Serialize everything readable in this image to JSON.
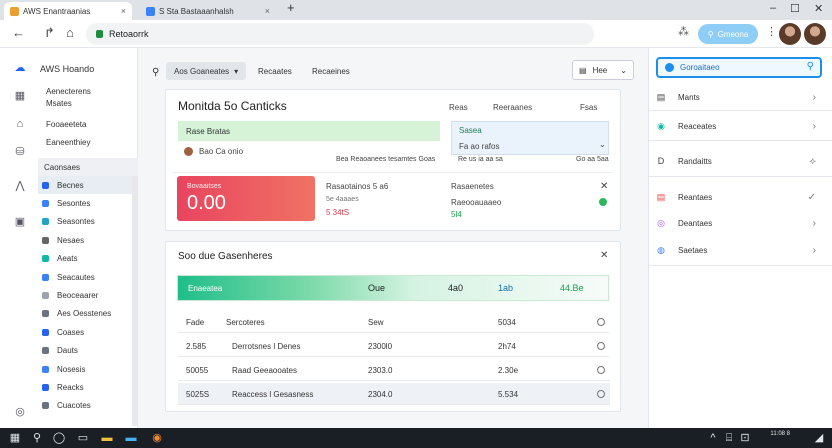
{
  "browser": {
    "tabs": [
      {
        "label": "AWS Enantraanias",
        "icon_color": "#e8a030",
        "close": "×"
      },
      {
        "label": "S Sta Bastaaanhalsh",
        "icon_color": "#3b82f6",
        "close": "×"
      }
    ],
    "new_tab": "+",
    "window_controls": {
      "minimize": "–",
      "maximize": "☐",
      "close": "✕"
    },
    "nav": {
      "back": "←",
      "forward": "↱",
      "home": "⌂"
    },
    "url": "Retoaorrk",
    "extensions": [
      "⁂",
      "⋮"
    ],
    "action_button": "Gmeona",
    "action_icon": "search-icon"
  },
  "sidebar": {
    "title": "AWS Hoando",
    "rail_icons": [
      "cloud-icon",
      "grid-icon",
      "home-icon",
      "database-icon",
      "chart-icon",
      "bell-icon",
      "settings-icon"
    ],
    "sections": [
      {
        "label": "Aenecterens\nMsates"
      },
      {
        "label": "Fooaeeteta"
      },
      {
        "label": "Eaneenthiey"
      },
      {
        "label": "Caonsaes"
      }
    ],
    "subitems": [
      {
        "label": "Becnes",
        "color": "#2563eb",
        "selected": true
      },
      {
        "label": "Sesontes",
        "color": "#3b82f6"
      },
      {
        "label": "Seasontes",
        "color": "#22a3c4"
      },
      {
        "label": "Nesaes",
        "color": "#666"
      },
      {
        "label": "Aeats",
        "color": "#14b8a6"
      },
      {
        "label": "Seacautes",
        "color": "#3b82f6"
      },
      {
        "label": "Beoceaarer",
        "color": "#9ca3af"
      },
      {
        "label": "Aes Oesstenes",
        "color": "#6b7280"
      },
      {
        "label": "Coases",
        "color": "#2563eb"
      },
      {
        "label": "Dauts",
        "color": "#6b7280"
      },
      {
        "label": "Nosesis",
        "color": "#3b82f6"
      },
      {
        "label": "Reacks",
        "color": "#2563eb"
      },
      {
        "label": "Cuacotes",
        "color": "#6b7280"
      }
    ]
  },
  "main": {
    "toolbar": {
      "filter_icon": "⚲",
      "chips": [
        {
          "label": "Aos Goaneates",
          "selected": true
        },
        {
          "label": "Recaates"
        },
        {
          "label": "Recaeines"
        }
      ],
      "dropdown": "Hee"
    },
    "card1": {
      "title": "Monitda 5o Canticks",
      "header_links": [
        "Reas",
        "Reeraanes",
        "Fsas"
      ],
      "green_field": "Rase Bratas",
      "user_row": "Bao Ca onio",
      "meta_left": "Bea Reaoanees tesamtes Goas",
      "blue_label": "Sasea",
      "blue_value": "Fa ao rafos",
      "blue_sub": "Re us ia aa sa",
      "blue_num": "Go aa 5aa",
      "stat_label": "Bovaaitses",
      "stat_value": "0.00",
      "detail_title": "Rasaotainos 5 a6",
      "detail_sub": "5e 4aaaes",
      "detail_red": "5 34tS",
      "right_title": "Rasaenetes",
      "right_sub": "Raeooauaaeo",
      "right_green": "5l4"
    },
    "card2": {
      "title": "Soo due Gasenheres",
      "gradient_row": [
        "Enaeatea",
        "Oue",
        "4a0",
        "1ab",
        "44.Be"
      ],
      "columns": [
        "Fade",
        "Sercoteres",
        "Sew",
        "5034"
      ],
      "rows": [
        {
          "c1": "2.585",
          "c2": "Derrotsnes l Denes",
          "c3": "2300l0",
          "c4": "2h74",
          "highlight": false
        },
        {
          "c1": "50055",
          "c2": "Raad Geeaooates",
          "c3": "2303.0",
          "c4": "2.30e",
          "highlight": false
        },
        {
          "c1": "5025S",
          "c2": "Reaccess l Gesasness",
          "c3": "2304.0",
          "c4": "5.534",
          "highlight": true
        }
      ]
    }
  },
  "right_panel": {
    "search_label": "Goroaitaeo",
    "items": [
      {
        "label": "Mants",
        "icon": "▤",
        "icon_color": "#444",
        "chevron": "›"
      },
      {
        "label": "Reaceates",
        "icon": "◉",
        "icon_color": "#14b8a6",
        "chevron": "›"
      },
      {
        "label": "Randaitts",
        "icon": "D",
        "icon_color": "#444",
        "chevron": "⟡"
      },
      {
        "label": "Reantaes",
        "icon": "▤",
        "icon_color": "#ef4444",
        "chevron": "✓"
      },
      {
        "label": "Deantaes",
        "icon": "◎",
        "icon_color": "#a855f7",
        "chevron": "›"
      },
      {
        "label": "Saetaes",
        "icon": "◍",
        "icon_color": "#3b82f6",
        "chevron": "›"
      }
    ]
  },
  "taskbar": {
    "icons": [
      "windows-icon",
      "search-icon",
      "taskview-icon",
      "files-icon",
      "store-icon",
      "mail-icon",
      "browser-icon"
    ],
    "tray": [
      "^",
      "⌸",
      "⊡",
      "◢"
    ],
    "time": "11:08 8"
  }
}
